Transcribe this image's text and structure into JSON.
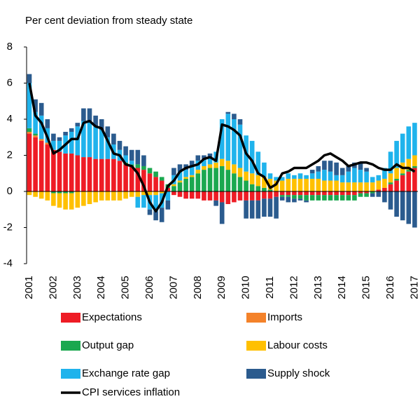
{
  "chart_data": {
    "type": "bar",
    "stacked": true,
    "subtitle": "Per cent deviation from steady state",
    "categories": [
      "2001",
      null,
      null,
      null,
      "2002",
      null,
      null,
      null,
      "2003",
      null,
      null,
      null,
      "2004",
      null,
      null,
      null,
      "2005",
      null,
      null,
      null,
      "2006",
      null,
      null,
      null,
      "2007",
      null,
      null,
      null,
      "2008",
      null,
      null,
      null,
      "2009",
      null,
      null,
      null,
      "2010",
      null,
      null,
      null,
      "2011",
      null,
      null,
      null,
      "2012",
      null,
      null,
      null,
      "2013",
      null,
      null,
      null,
      "2014",
      null,
      null,
      null,
      "2015",
      null,
      null,
      null,
      "2016",
      null,
      null,
      null,
      "2017"
    ],
    "ylim": [
      -4,
      8
    ],
    "yticks": [
      8,
      6,
      4,
      2,
      0,
      -2,
      -4
    ],
    "series": [
      {
        "name": "Expectations",
        "color": "#ee1c25",
        "values": [
          3.2,
          3.0,
          2.8,
          2.6,
          2.3,
          2.2,
          2.1,
          2.1,
          2.0,
          1.9,
          1.9,
          1.8,
          1.8,
          1.8,
          1.8,
          1.7,
          1.5,
          1.4,
          1.3,
          1.2,
          1.0,
          0.8,
          0.6,
          0.2,
          -0.2,
          -0.3,
          -0.4,
          -0.4,
          -0.4,
          -0.5,
          -0.5,
          -0.5,
          -0.6,
          -0.7,
          -0.6,
          -0.5,
          -0.5,
          -0.5,
          -0.5,
          -0.4,
          -0.4,
          -0.3,
          -0.2,
          -0.2,
          -0.2,
          -0.2,
          -0.2,
          -0.2,
          -0.2,
          -0.2,
          -0.2,
          -0.2,
          -0.2,
          -0.2,
          -0.2,
          -0.1,
          -0.1,
          0,
          0.1,
          0.2,
          0.4,
          0.6,
          0.9,
          1.1,
          1.3
        ]
      },
      {
        "name": "Imports",
        "color": "#f4822a",
        "values": [
          0.1,
          0.1,
          0.1,
          0.1,
          0,
          0,
          0,
          0,
          0,
          0,
          0,
          0,
          0,
          0,
          0,
          0,
          0,
          0,
          0,
          0,
          0,
          0,
          0,
          0,
          0,
          0,
          0,
          0,
          0,
          0,
          0,
          0,
          0,
          0,
          0,
          0,
          0,
          0,
          0,
          0,
          0,
          0,
          0,
          0,
          0,
          0,
          0,
          0,
          0,
          0,
          0,
          0,
          0,
          0,
          0,
          0,
          0,
          0,
          0,
          0,
          0,
          0,
          0,
          0,
          0
        ]
      },
      {
        "name": "Output gap",
        "color": "#1aa84f",
        "values": [
          0.2,
          0.1,
          0,
          0,
          -0.1,
          -0.1,
          -0.1,
          -0.1,
          0,
          0,
          0,
          0,
          0,
          0,
          0,
          0,
          0.1,
          0.1,
          0.2,
          0.2,
          0.3,
          0.3,
          0.2,
          0.2,
          0.3,
          0.5,
          0.7,
          0.8,
          1.0,
          1.2,
          1.3,
          1.3,
          1.4,
          1.2,
          1.0,
          0.8,
          0.6,
          0.4,
          0.3,
          0.2,
          0.1,
          0,
          -0.1,
          -0.1,
          -0.2,
          -0.2,
          -0.3,
          -0.3,
          -0.3,
          -0.3,
          -0.3,
          -0.3,
          -0.3,
          -0.3,
          -0.3,
          -0.2,
          -0.2,
          -0.1,
          0,
          0,
          0.1,
          0.1,
          0.1,
          0.1,
          0.1
        ]
      },
      {
        "name": "Labour costs",
        "color": "#ffc000",
        "values": [
          -0.2,
          -0.3,
          -0.4,
          -0.5,
          -0.7,
          -0.8,
          -0.9,
          -0.9,
          -0.9,
          -0.8,
          -0.7,
          -0.6,
          -0.5,
          -0.5,
          -0.5,
          -0.5,
          -0.4,
          -0.3,
          -0.3,
          -0.2,
          -0.2,
          -0.2,
          -0.1,
          0,
          0.1,
          0.1,
          0.1,
          0.1,
          0.2,
          0.2,
          0.2,
          0.3,
          0.4,
          0.5,
          0.5,
          0.5,
          0.5,
          0.6,
          0.6,
          0.6,
          0.6,
          0.6,
          0.6,
          0.7,
          0.7,
          0.7,
          0.7,
          0.7,
          0.7,
          0.6,
          0.6,
          0.6,
          0.5,
          0.5,
          0.5,
          0.5,
          0.5,
          0.5,
          0.5,
          0.5,
          0.5,
          0.6,
          0.6,
          0.6,
          0.6
        ]
      },
      {
        "name": "Exchange rate gap",
        "color": "#1fb3ec",
        "values": [
          2.5,
          1.2,
          1.3,
          0.8,
          0.5,
          0.6,
          1.0,
          1.2,
          1.6,
          2.0,
          2.0,
          1.8,
          1.6,
          1.2,
          0.8,
          0.6,
          0.4,
          0.2,
          -0.6,
          -0.7,
          -0.8,
          -0.9,
          -0.8,
          -0.5,
          0.5,
          0.5,
          0.4,
          0.5,
          0.5,
          0.4,
          0.4,
          0.6,
          2.2,
          2.6,
          2.5,
          2.4,
          2.0,
          1.8,
          1.3,
          0.8,
          0.3,
          0.2,
          0.2,
          0.3,
          0.2,
          0.3,
          0.2,
          0.3,
          0.4,
          0.6,
          0.5,
          0.3,
          0.4,
          0.6,
          0.8,
          0.7,
          0.6,
          0.3,
          0.3,
          0.6,
          1.2,
          1.5,
          1.6,
          1.8,
          1.8
        ]
      },
      {
        "name": "Supply shock",
        "color": "#2b5b8e",
        "values": [
          0.5,
          0.7,
          0.7,
          0.5,
          0.4,
          0.2,
          0.2,
          0.2,
          0.2,
          0.7,
          0.7,
          0.6,
          0.6,
          0.6,
          0.6,
          0.5,
          0.5,
          0.6,
          0.8,
          0.6,
          -0.3,
          -0.5,
          -0.8,
          -0.5,
          0.4,
          0.4,
          0.3,
          0.3,
          0.3,
          0.2,
          0.2,
          -0.3,
          -1.2,
          0.1,
          0.3,
          0.3,
          -1.0,
          -1.0,
          -1.0,
          -1.0,
          -1.0,
          -1.2,
          -0.2,
          -0.3,
          -0.2,
          -0.1,
          -0.1,
          0.2,
          0.3,
          0.5,
          0.6,
          0.7,
          0.4,
          0.3,
          0.3,
          0.4,
          0.2,
          -0.2,
          -0.3,
          -0.6,
          -1.0,
          -1.4,
          -1.6,
          -1.8,
          -2.0
        ]
      },
      {
        "name": "CPI services inflation",
        "type": "line",
        "color": "#000000",
        "values": [
          6.0,
          4.2,
          3.8,
          3.0,
          2.1,
          2.3,
          2.6,
          2.9,
          2.9,
          3.8,
          3.9,
          3.6,
          3.5,
          2.8,
          2.1,
          2.0,
          1.5,
          1.4,
          1.0,
          0.3,
          -0.6,
          -1.1,
          -0.6,
          0.3,
          0.6,
          1.1,
          1.3,
          1.4,
          1.5,
          1.8,
          1.9,
          1.7,
          3.7,
          3.6,
          3.4,
          3.1,
          2.1,
          1.7,
          1.0,
          0.8,
          0.2,
          0.4,
          1.0,
          1.1,
          1.3,
          1.3,
          1.3,
          1.5,
          1.7,
          2.0,
          2.1,
          1.9,
          1.7,
          1.4,
          1.5,
          1.6,
          1.6,
          1.5,
          1.3,
          1.2,
          1.2,
          1.5,
          1.3,
          1.3,
          1.1
        ]
      }
    ]
  }
}
